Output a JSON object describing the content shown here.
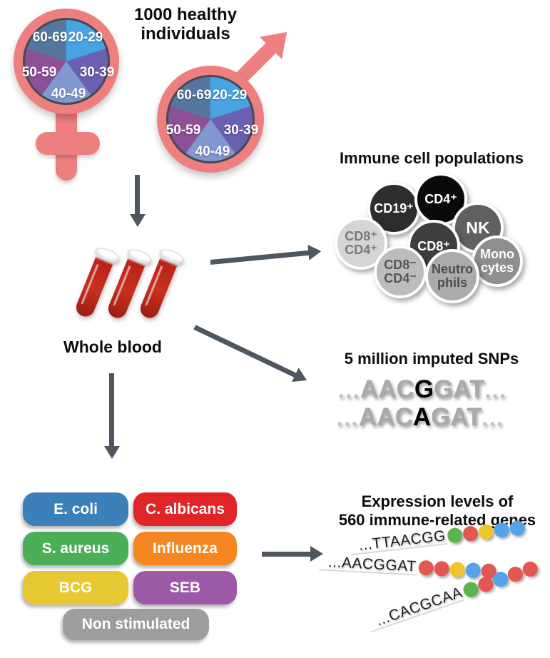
{
  "title": {
    "line1": "1000 healthy",
    "line2": "individuals"
  },
  "demographics": {
    "age_groups": [
      "20-29",
      "30-39",
      "40-49",
      "50-59",
      "60-69"
    ],
    "slice_colors": [
      "#47a3e2",
      "#6a5fb0",
      "#8097cf",
      "#8c5094",
      "#55779f"
    ],
    "symbol_color": "#ee7f7f"
  },
  "whole_blood": {
    "label": "Whole blood"
  },
  "immune_cells": {
    "title": "Immune cell populations",
    "cells": [
      {
        "label": "CD19⁺",
        "color": "#2d2d2d",
        "text_color": "#ffffff"
      },
      {
        "label": "CD4⁺",
        "color": "#0a0a0a",
        "text_color": "#ffffff"
      },
      {
        "label": "NK",
        "color": "#606060",
        "text_color": "#ffffff"
      },
      {
        "label": "CD8⁺\nCD4⁺",
        "color": "#d5d5d5",
        "text_color": "#7a7a7a"
      },
      {
        "label": "CD8⁺",
        "color": "#3e3e3e",
        "text_color": "#ffffff"
      },
      {
        "label": "Mono\ncytes",
        "color": "#8e8e8e",
        "text_color": "#ffffff"
      },
      {
        "label": "CD8⁻\nCD4⁻",
        "color": "#bcbcbc",
        "text_color": "#555555"
      },
      {
        "label": "Neutro\nphils",
        "color": "#ababab",
        "text_color": "#4d4d4d"
      }
    ]
  },
  "snps": {
    "title": "5 million imputed SNPs",
    "sequences": [
      {
        "prefix": "...",
        "before": "AAC",
        "variant": "G",
        "after": "GAT",
        "suffix": "..."
      },
      {
        "prefix": "...",
        "before": "AAC",
        "variant": "A",
        "after": "GAT",
        "suffix": "..."
      }
    ]
  },
  "stimuli": {
    "items": [
      {
        "label": "E. coli",
        "color": "#3c80ba"
      },
      {
        "label": "C. albicans",
        "color": "#e02428"
      },
      {
        "label": "S. aureus",
        "color": "#4caf57"
      },
      {
        "label": "Influenza",
        "color": "#f6861f"
      },
      {
        "label": "BCG",
        "color": "#e7c832"
      },
      {
        "label": "SEB",
        "color": "#9c59a7"
      },
      {
        "label": "Non stimulated",
        "color": "#9d9d9d"
      }
    ]
  },
  "expression": {
    "title_line1": "Expression levels of",
    "title_line2": "560 immune-related genes",
    "dot_colors": {
      "green": "#5ab54e",
      "red": "#e2574f",
      "yellow": "#f0c42f",
      "blue": "#55a1ea"
    },
    "rows": [
      {
        "sequence": "...TTAACGG",
        "dots": [
          "green",
          "red",
          "yellow",
          "blue",
          "blue"
        ]
      },
      {
        "sequence": "...AACGGAT",
        "dots": [
          "red",
          "red",
          "yellow",
          "blue",
          "red"
        ]
      },
      {
        "sequence": "...CACGCAA",
        "dots": [
          "green",
          "red",
          "blue",
          "red",
          "red"
        ]
      }
    ]
  },
  "arrow_color": "#4e565f"
}
